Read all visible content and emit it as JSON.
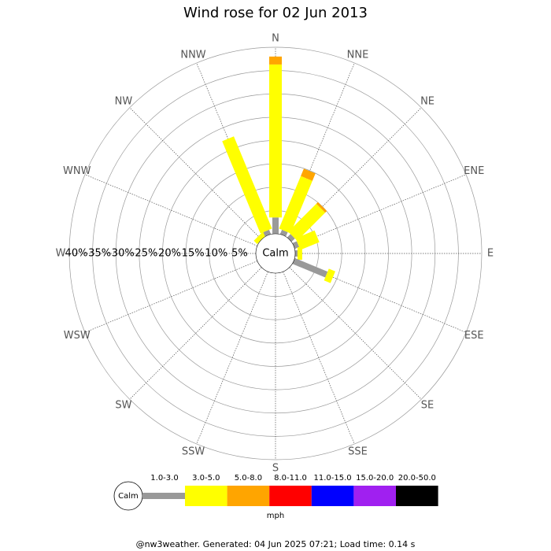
{
  "chart_data": {
    "type": "windrose",
    "title": "Wind rose for 02 Jun 2013",
    "categories": [
      "N",
      "NNE",
      "NE",
      "ENE",
      "E",
      "ESE",
      "SE",
      "SSE",
      "S",
      "SSW",
      "SW",
      "WSW",
      "W",
      "WNW",
      "NW",
      "NNW"
    ],
    "calm_label": "Calm",
    "rlim": [
      0,
      40
    ],
    "rticks": [
      {
        "value": 5,
        "label": "5%"
      },
      {
        "value": 10,
        "label": "10%"
      },
      {
        "value": 15,
        "label": "15%"
      },
      {
        "value": 20,
        "label": "20%"
      },
      {
        "value": 25,
        "label": "25%"
      },
      {
        "value": 30,
        "label": "30%"
      },
      {
        "value": 35,
        "label": "35%"
      },
      {
        "value": 40,
        "label": "40%"
      }
    ],
    "series": [
      {
        "name": "1.0-3.0",
        "color": "#999999",
        "values": [
          3.5,
          1,
          1,
          1,
          0.5,
          7.6,
          0,
          0,
          0,
          0,
          0,
          0,
          0,
          0,
          0,
          1
        ]
      },
      {
        "name": "3.0-5.0",
        "color": "#ffff00",
        "values": [
          32.8,
          12.2,
          8.5,
          4.4,
          1,
          1.5,
          0,
          0,
          0,
          0,
          0,
          0,
          0,
          0,
          1,
          21.4
        ]
      },
      {
        "name": "5.0-8.0",
        "color": "#ffa500",
        "values": [
          1.7,
          1.7,
          0.5,
          0,
          0,
          0,
          0,
          0,
          0,
          0,
          0,
          0,
          0,
          0,
          0,
          0
        ]
      },
      {
        "name": "8.0-11.0",
        "color": "#ff0000",
        "values": [
          0,
          0,
          0,
          0,
          0,
          0,
          0,
          0,
          0,
          0,
          0,
          0,
          0,
          0,
          0,
          0
        ]
      },
      {
        "name": "11.0-15.0",
        "color": "#0000ff",
        "values": [
          0,
          0,
          0,
          0,
          0,
          0,
          0,
          0,
          0,
          0,
          0,
          0,
          0,
          0,
          0,
          0
        ]
      },
      {
        "name": "15.0-20.0",
        "color": "#a020f0",
        "values": [
          0,
          0,
          0,
          0,
          0,
          0,
          0,
          0,
          0,
          0,
          0,
          0,
          0,
          0,
          0,
          0
        ]
      },
      {
        "name": "20.0-50.0",
        "color": "#000000",
        "values": [
          0,
          0,
          0,
          0,
          0,
          0,
          0,
          0,
          0,
          0,
          0,
          0,
          0,
          0,
          0,
          0
        ]
      }
    ],
    "unit_label": "mph",
    "footer": "@nw3weather. Generated: 04 Jun 2025 07:21; Load time: 0.14 s"
  }
}
